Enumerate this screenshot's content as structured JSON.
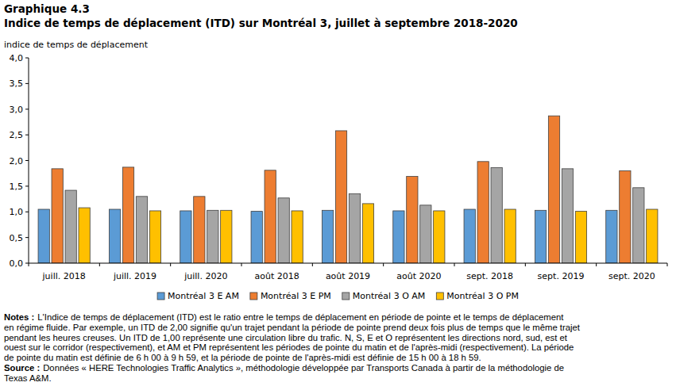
{
  "chart_data": {
    "type": "bar",
    "title": "Graphique 4.3",
    "subtitle": "Indice de temps de déplacement (ITD) sur Montréal 3, juillet à septembre 2018-2020",
    "y_label": "indice de temps de déplacement",
    "categories": [
      "juill. 2018",
      "juill. 2019",
      "juill. 2020",
      "août 2018",
      "août 2019",
      "août 2020",
      "sept. 2018",
      "sept. 2019",
      "sept. 2020"
    ],
    "series": [
      {
        "name": "Montréal 3 E AM",
        "color": "#5b9bd5",
        "values": [
          1.05,
          1.05,
          1.02,
          1.01,
          1.03,
          1.02,
          1.05,
          1.03,
          1.03
        ]
      },
      {
        "name": "Montréal 3 E PM",
        "color": "#ed7d31",
        "values": [
          1.84,
          1.87,
          1.3,
          1.81,
          2.58,
          1.69,
          1.98,
          2.87,
          1.8
        ]
      },
      {
        "name": "Montréal 3 O AM",
        "color": "#a5a5a5",
        "values": [
          1.42,
          1.3,
          1.03,
          1.27,
          1.35,
          1.13,
          1.86,
          1.84,
          1.47
        ]
      },
      {
        "name": "Montréal 3 O PM",
        "color": "#ffc000",
        "values": [
          1.08,
          1.02,
          1.03,
          1.02,
          1.16,
          1.02,
          1.05,
          1.01,
          1.05
        ]
      }
    ],
    "ylim": [
      0,
      4
    ],
    "yticks": [
      {
        "value": 0,
        "label": "0,0"
      },
      {
        "value": 0.5,
        "label": "0,5"
      },
      {
        "value": 1,
        "label": "1,0"
      },
      {
        "value": 1.5,
        "label": "1,5"
      },
      {
        "value": 2,
        "label": "2,0"
      },
      {
        "value": 2.5,
        "label": "2,5"
      },
      {
        "value": 3,
        "label": "3,0"
      },
      {
        "value": 3.5,
        "label": "3,5"
      },
      {
        "value": 4,
        "label": "4,0"
      }
    ],
    "grid": false,
    "legend": "bottom",
    "notes_label": "Notes :",
    "notes": [
      "L'Indice de temps de déplacement (ITD) est le ratio entre le temps de déplacement en période de pointe et le temps de déplacement",
      "en régime fluide. Par exemple, un ITD de 2,00 signifie qu'un trajet pendant la période de pointe prend deux fois plus de temps que le même trajet",
      "pendant les heures creuses. Un ITD de 1,00 représente une circulation libre du trafic. N, S, E et O représentent les directions nord, sud, est et",
      "ouest sur le corridor (respectivement), et AM et PM représentent les périodes de pointe du matin et de l'après-midi (respectivement). La période",
      "de pointe du matin est définie de 6 h 00 à 9 h 59, et la période de pointe de l'après-midi est définie de 15 h 00 à 18 h 59."
    ],
    "source_label": "Source :",
    "source": [
      "Données « HERE Technologies Traffic Analytics », méthodologie développée par Transports Canada à partir de la méthodologie de",
      "Texas A&M."
    ]
  }
}
